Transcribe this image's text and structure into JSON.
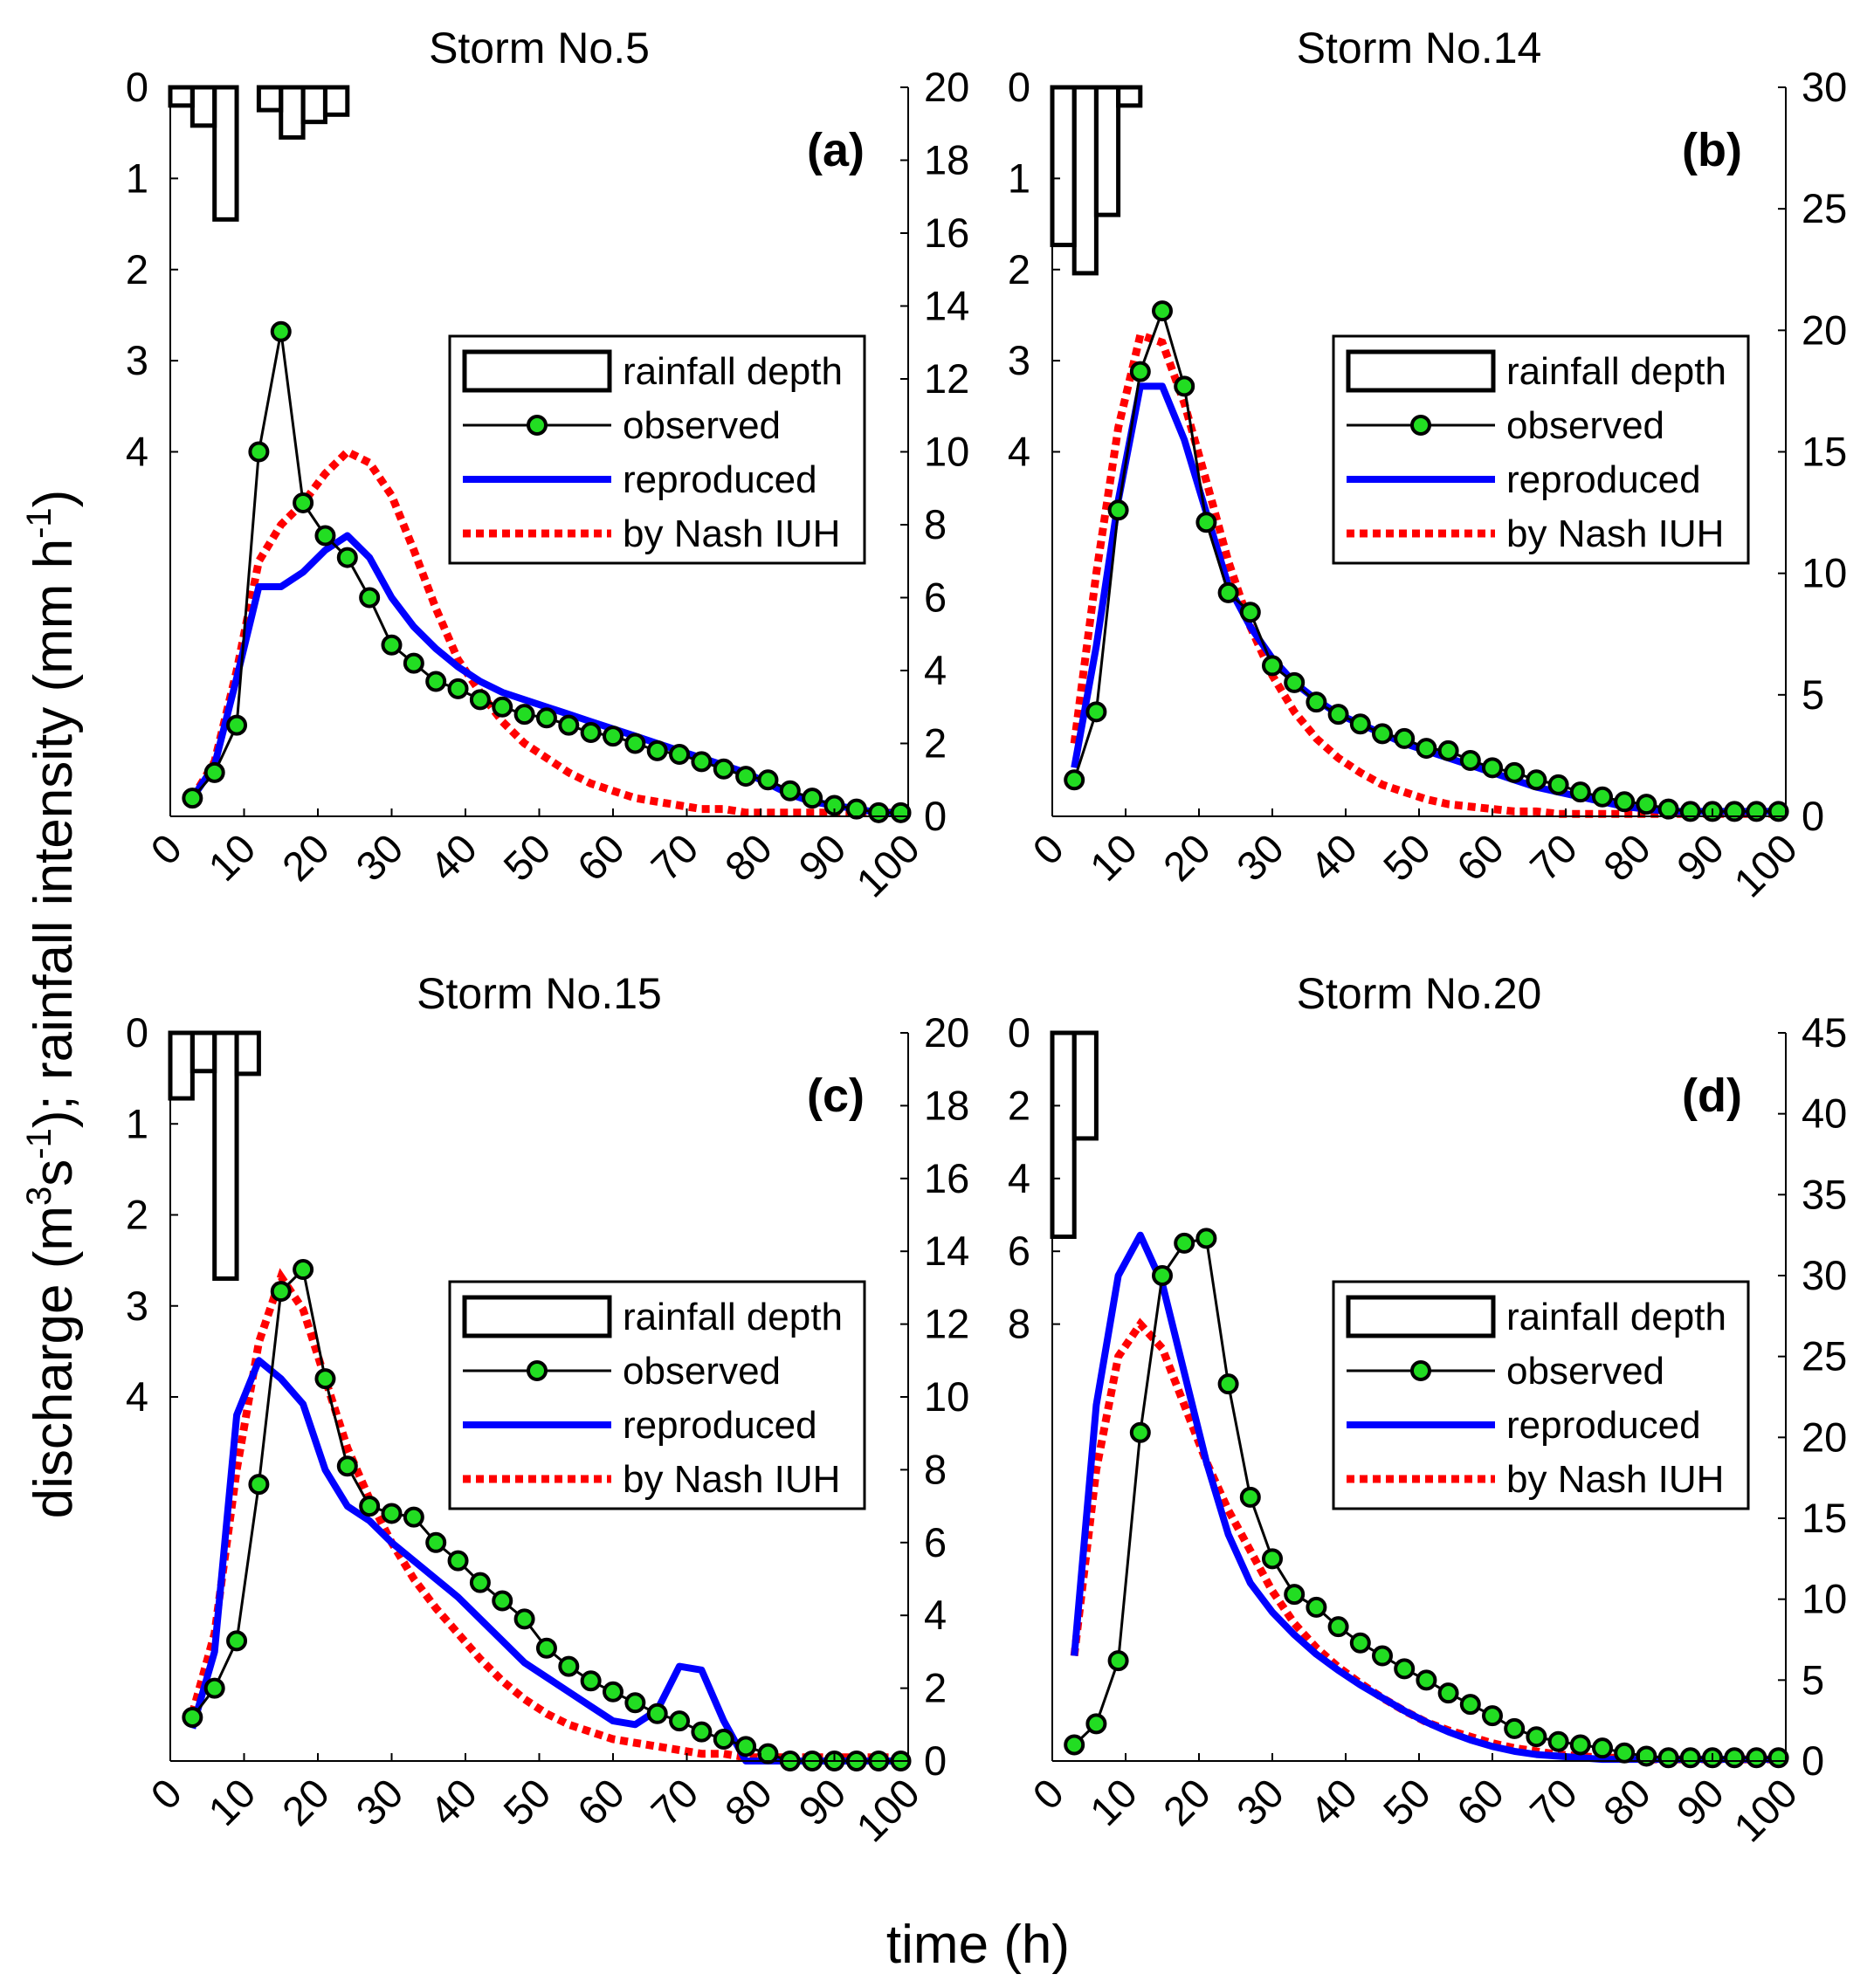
{
  "figure": {
    "x_label": "time (h)",
    "y_label_parts": [
      "discharge (m",
      "3",
      "s",
      "-1",
      "); rainfall intensity (mm h",
      "-1",
      ")"
    ],
    "legend": {
      "rainfall": "rainfall depth",
      "observed": "observed",
      "reproduced": "reproduced",
      "nash": "by Nash IUH"
    },
    "colors": {
      "observed_line": "#000000",
      "observed_marker": "#22dd22",
      "reproduced": "#0000ff",
      "nash": "#ff0000",
      "bars": "#000000"
    }
  },
  "chart_data": [
    {
      "type": "line",
      "title": "Storm No.5",
      "label": "(a)",
      "xlabel": "time (h)",
      "xlim": [
        0,
        100
      ],
      "xticks": [
        0,
        10,
        20,
        30,
        40,
        50,
        60,
        70,
        80,
        90,
        100
      ],
      "xticklabels": [
        "0",
        "10",
        "20",
        "30",
        "40",
        "50",
        "60",
        "70",
        "80",
        "90",
        "100"
      ],
      "ylim_right": [
        0,
        20
      ],
      "yticks_right": [
        0,
        2,
        4,
        6,
        8,
        10,
        12,
        14,
        16,
        18,
        20
      ],
      "yticklabels_right": [
        "0",
        "2",
        "4",
        "6",
        "8",
        "10",
        "12",
        "14",
        "16",
        "18",
        "20"
      ],
      "rain_axis_max": 8,
      "yticks_left": [
        0,
        1,
        2,
        3,
        4
      ],
      "yticklabels_left": [
        "0",
        "1",
        "2",
        "3",
        "4"
      ],
      "rainfall": {
        "x": [
          3,
          6,
          9,
          12,
          15,
          18,
          21,
          24
        ],
        "width": 3,
        "values": [
          0.2,
          0.42,
          1.45,
          0.0,
          0.25,
          0.55,
          0.38,
          0.3
        ]
      },
      "observed": {
        "x": [
          3,
          6,
          9,
          12,
          15,
          18,
          21,
          24,
          27,
          30,
          33,
          36,
          39,
          42,
          45,
          48,
          51,
          54,
          57,
          60,
          63,
          66,
          69,
          72,
          75,
          78,
          81,
          84,
          87,
          90,
          93,
          96,
          99
        ],
        "y": [
          0.5,
          1.2,
          2.5,
          10.0,
          13.3,
          8.6,
          7.7,
          7.1,
          6.0,
          4.7,
          4.2,
          3.7,
          3.5,
          3.2,
          3.0,
          2.8,
          2.7,
          2.5,
          2.3,
          2.2,
          2.0,
          1.8,
          1.7,
          1.5,
          1.3,
          1.1,
          1.0,
          0.7,
          0.5,
          0.3,
          0.2,
          0.1,
          0.1
        ]
      },
      "reproduced": {
        "x": [
          3,
          6,
          9,
          12,
          15,
          18,
          21,
          24,
          27,
          30,
          33,
          36,
          39,
          42,
          45,
          48,
          51,
          54,
          57,
          60,
          63,
          66,
          69,
          72,
          75,
          78,
          81,
          84,
          87,
          90,
          93,
          96,
          99
        ],
        "y": [
          0.5,
          1.4,
          3.8,
          6.3,
          6.3,
          6.7,
          7.3,
          7.7,
          7.1,
          6.0,
          5.2,
          4.6,
          4.1,
          3.7,
          3.4,
          3.2,
          3.0,
          2.8,
          2.6,
          2.4,
          2.2,
          2.0,
          1.8,
          1.6,
          1.4,
          1.2,
          0.9,
          0.6,
          0.4,
          0.3,
          0.2,
          0.1,
          0.1
        ]
      },
      "nash": {
        "x": [
          3,
          6,
          9,
          12,
          15,
          18,
          21,
          24,
          27,
          30,
          33,
          36,
          39,
          42,
          45,
          48,
          51,
          54,
          57,
          60,
          63,
          66,
          69,
          72,
          75,
          78,
          81,
          84,
          87,
          90,
          93,
          96,
          99
        ],
        "y": [
          0.5,
          1.5,
          4.0,
          7.0,
          8.0,
          8.6,
          9.4,
          10.0,
          9.7,
          8.8,
          7.3,
          5.7,
          4.3,
          3.4,
          2.6,
          2.0,
          1.6,
          1.2,
          0.9,
          0.7,
          0.5,
          0.4,
          0.3,
          0.2,
          0.2,
          0.1,
          0.1,
          0.1,
          0.1,
          0.1,
          0.1,
          0.1,
          0.1
        ]
      }
    },
    {
      "type": "line",
      "title": "Storm No.14",
      "label": "(b)",
      "xlabel": "time (h)",
      "xlim": [
        0,
        100
      ],
      "xticks": [
        0,
        10,
        20,
        30,
        40,
        50,
        60,
        70,
        80,
        90,
        100
      ],
      "xticklabels": [
        "0",
        "10",
        "20",
        "30",
        "40",
        "50",
        "60",
        "70",
        "80",
        "90",
        "100"
      ],
      "ylim_right": [
        0,
        30
      ],
      "yticks_right": [
        0,
        5,
        10,
        15,
        20,
        25,
        30
      ],
      "yticklabels_right": [
        "0",
        "5",
        "10",
        "15",
        "20",
        "25",
        "30"
      ],
      "rain_axis_max": 8,
      "yticks_left": [
        0,
        1,
        2,
        3,
        4
      ],
      "yticklabels_left": [
        "0",
        "1",
        "2",
        "3",
        "4"
      ],
      "rainfall": {
        "x": [
          3,
          6,
          9,
          12
        ],
        "width": 3,
        "values": [
          1.73,
          2.04,
          1.4,
          0.2
        ]
      },
      "observed": {
        "x": [
          3,
          6,
          9,
          12,
          15,
          18,
          21,
          24,
          27,
          30,
          33,
          36,
          39,
          42,
          45,
          48,
          51,
          54,
          57,
          60,
          63,
          66,
          69,
          72,
          75,
          78,
          81,
          84,
          87,
          90,
          93,
          96,
          99
        ],
        "y": [
          1.5,
          4.3,
          12.6,
          18.3,
          20.8,
          17.7,
          12.1,
          9.2,
          8.4,
          6.2,
          5.5,
          4.7,
          4.2,
          3.8,
          3.4,
          3.2,
          2.8,
          2.7,
          2.3,
          2.0,
          1.8,
          1.5,
          1.3,
          1.0,
          0.8,
          0.6,
          0.5,
          0.3,
          0.2,
          0.2,
          0.2,
          0.2,
          0.2
        ]
      },
      "reproduced": {
        "x": [
          3,
          6,
          9,
          12,
          15,
          18,
          21,
          24,
          27,
          30,
          33,
          36,
          39,
          42,
          45,
          48,
          51,
          54,
          57,
          60,
          63,
          66,
          69,
          72,
          75,
          78,
          81,
          84,
          87,
          90,
          93,
          96,
          99
        ],
        "y": [
          2.0,
          7.0,
          13.0,
          17.7,
          17.7,
          15.5,
          12.5,
          9.5,
          7.8,
          6.5,
          5.5,
          4.8,
          4.2,
          3.8,
          3.4,
          3.0,
          2.7,
          2.4,
          2.1,
          1.8,
          1.5,
          1.2,
          1.0,
          0.8,
          0.6,
          0.4,
          0.3,
          0.2,
          0.2,
          0.2,
          0.2,
          0.2,
          0.2
        ]
      },
      "nash": {
        "x": [
          3,
          6,
          9,
          12,
          15,
          18,
          21,
          24,
          27,
          30,
          33,
          36,
          39,
          42,
          45,
          48,
          51,
          54,
          57,
          60,
          63,
          66,
          69,
          72,
          75,
          78,
          81,
          84,
          87,
          90,
          93,
          96,
          99
        ],
        "y": [
          3.0,
          10.0,
          16.0,
          19.8,
          19.5,
          17.0,
          13.8,
          10.5,
          7.8,
          5.8,
          4.3,
          3.2,
          2.4,
          1.8,
          1.3,
          1.0,
          0.7,
          0.5,
          0.4,
          0.3,
          0.2,
          0.2,
          0.1,
          0.1,
          0.1,
          0.1,
          0.1,
          0.1,
          0.1,
          0.1,
          0.1,
          0.1,
          0.1
        ]
      }
    },
    {
      "type": "line",
      "title": "Storm No.15",
      "label": "(c)",
      "xlabel": "time (h)",
      "xlim": [
        0,
        100
      ],
      "xticks": [
        0,
        10,
        20,
        30,
        40,
        50,
        60,
        70,
        80,
        90,
        100
      ],
      "xticklabels": [
        "0",
        "10",
        "20",
        "30",
        "40",
        "50",
        "60",
        "70",
        "80",
        "90",
        "100"
      ],
      "ylim_right": [
        0,
        20
      ],
      "yticks_right": [
        0,
        2,
        4,
        6,
        8,
        10,
        12,
        14,
        16,
        18,
        20
      ],
      "yticklabels_right": [
        "0",
        "2",
        "4",
        "6",
        "8",
        "10",
        "12",
        "14",
        "16",
        "18",
        "20"
      ],
      "rain_axis_max": 8,
      "yticks_left": [
        0,
        1,
        2,
        3,
        4
      ],
      "yticklabels_left": [
        "0",
        "1",
        "2",
        "3",
        "4"
      ],
      "rainfall": {
        "x": [
          3,
          6,
          9,
          12
        ],
        "width": 3,
        "values": [
          0.72,
          0.42,
          2.7,
          0.45
        ]
      },
      "observed": {
        "x": [
          3,
          6,
          9,
          12,
          15,
          18,
          21,
          24,
          27,
          30,
          33,
          36,
          39,
          42,
          45,
          48,
          51,
          54,
          57,
          60,
          63,
          66,
          69,
          72,
          75,
          78,
          81,
          84,
          87,
          90,
          93,
          96,
          99
        ],
        "y": [
          1.2,
          2.0,
          3.3,
          7.6,
          12.9,
          13.5,
          10.5,
          8.1,
          7.0,
          6.8,
          6.7,
          6.0,
          5.5,
          4.9,
          4.4,
          3.9,
          3.1,
          2.6,
          2.2,
          1.9,
          1.6,
          1.3,
          1.1,
          0.8,
          0.6,
          0.4,
          0.2,
          0.0,
          0.0,
          0.0,
          0.0,
          0.0,
          0.0
        ]
      },
      "reproduced": {
        "x": [
          3,
          6,
          9,
          12,
          15,
          18,
          21,
          24,
          27,
          30,
          33,
          36,
          39,
          42,
          45,
          48,
          51,
          54,
          57,
          60,
          63,
          66,
          69,
          72,
          75,
          78,
          81,
          84,
          87,
          90,
          93,
          96,
          99
        ],
        "y": [
          0.9,
          3.0,
          9.5,
          11.0,
          10.5,
          9.8,
          8.0,
          7.0,
          6.6,
          6.0,
          5.5,
          5.0,
          4.5,
          3.9,
          3.3,
          2.7,
          2.3,
          1.9,
          1.5,
          1.1,
          1.0,
          1.4,
          2.6,
          2.5,
          1.1,
          0.0,
          0.0,
          0.0,
          0.0,
          0.0,
          0.0,
          0.0,
          0.0
        ]
      },
      "nash": {
        "x": [
          3,
          6,
          9,
          12,
          15,
          18,
          21,
          24,
          27,
          30,
          33,
          36,
          39,
          42,
          45,
          48,
          51,
          54,
          57,
          60,
          63,
          66,
          69,
          72,
          75,
          78,
          81,
          84,
          87,
          90,
          93,
          96,
          99
        ],
        "y": [
          1.3,
          3.5,
          8.0,
          11.5,
          13.3,
          12.4,
          10.5,
          8.6,
          7.2,
          6.0,
          5.0,
          4.2,
          3.5,
          2.8,
          2.2,
          1.7,
          1.3,
          1.0,
          0.8,
          0.6,
          0.5,
          0.4,
          0.3,
          0.2,
          0.2,
          0.1,
          0.1,
          0.1,
          0.1,
          0.1,
          0.1,
          0.1,
          0.1
        ]
      }
    },
    {
      "type": "line",
      "title": "Storm No.20",
      "label": "(d)",
      "xlabel": "time (h)",
      "xlim": [
        0,
        100
      ],
      "xticks": [
        0,
        10,
        20,
        30,
        40,
        50,
        60,
        70,
        80,
        90,
        100
      ],
      "xticklabels": [
        "0",
        "10",
        "20",
        "30",
        "40",
        "50",
        "60",
        "70",
        "80",
        "90",
        "100"
      ],
      "ylim_right": [
        0,
        45
      ],
      "yticks_right": [
        0,
        5,
        10,
        15,
        20,
        25,
        30,
        35,
        40,
        45
      ],
      "yticklabels_right": [
        "0",
        "5",
        "10",
        "15",
        "20",
        "25",
        "30",
        "35",
        "40",
        "45"
      ],
      "rain_axis_max": 20,
      "yticks_left": [
        0,
        2,
        4,
        6,
        8
      ],
      "yticklabels_left": [
        "0",
        "2",
        "4",
        "6",
        "8"
      ],
      "rainfall": {
        "x": [
          3,
          6
        ],
        "width": 3,
        "values": [
          5.6,
          2.9
        ]
      },
      "observed": {
        "x": [
          3,
          6,
          9,
          12,
          15,
          18,
          21,
          24,
          27,
          30,
          33,
          36,
          39,
          42,
          45,
          48,
          51,
          54,
          57,
          60,
          63,
          66,
          69,
          72,
          75,
          78,
          81,
          84,
          87,
          90,
          93,
          96,
          99
        ],
        "y": [
          1.0,
          2.3,
          6.2,
          20.3,
          30.0,
          32.0,
          32.3,
          23.3,
          16.3,
          12.5,
          10.3,
          9.5,
          8.3,
          7.3,
          6.5,
          5.7,
          5.0,
          4.2,
          3.5,
          2.8,
          2.0,
          1.5,
          1.2,
          1.0,
          0.8,
          0.5,
          0.3,
          0.2,
          0.2,
          0.2,
          0.2,
          0.2,
          0.2
        ]
      },
      "reproduced": {
        "x": [
          3,
          6,
          9,
          12,
          15,
          18,
          21,
          24,
          27,
          30,
          33,
          36,
          39,
          42,
          45,
          48,
          51,
          54,
          57,
          60,
          63,
          66,
          69,
          72,
          75,
          78,
          81,
          84,
          87,
          90,
          93,
          96,
          99
        ],
        "y": [
          6.5,
          22.0,
          30.0,
          32.5,
          29.5,
          24.0,
          18.5,
          14.0,
          11.0,
          9.2,
          7.8,
          6.6,
          5.6,
          4.7,
          3.9,
          3.1,
          2.4,
          1.8,
          1.3,
          0.9,
          0.6,
          0.4,
          0.3,
          0.2,
          0.1,
          0.1,
          0.1,
          0.1,
          0.1,
          0.1,
          0.1,
          0.1,
          0.1
        ]
      },
      "nash": {
        "x": [
          3,
          6,
          9,
          12,
          15,
          18,
          21,
          24,
          27,
          30,
          33,
          36,
          39,
          42,
          45,
          48,
          51,
          54,
          57,
          60,
          63,
          66,
          69,
          72,
          75,
          78,
          81,
          84,
          87,
          90,
          93,
          96,
          99
        ],
        "y": [
          6.5,
          18.0,
          25.0,
          27.0,
          25.5,
          22.0,
          18.5,
          15.5,
          13.0,
          10.5,
          8.5,
          7.0,
          5.8,
          4.8,
          3.9,
          3.1,
          2.4,
          1.9,
          1.5,
          1.1,
          0.8,
          0.6,
          0.4,
          0.3,
          0.2,
          0.2,
          0.1,
          0.1,
          0.1,
          0.1,
          0.1,
          0.1,
          0.1
        ]
      }
    }
  ]
}
